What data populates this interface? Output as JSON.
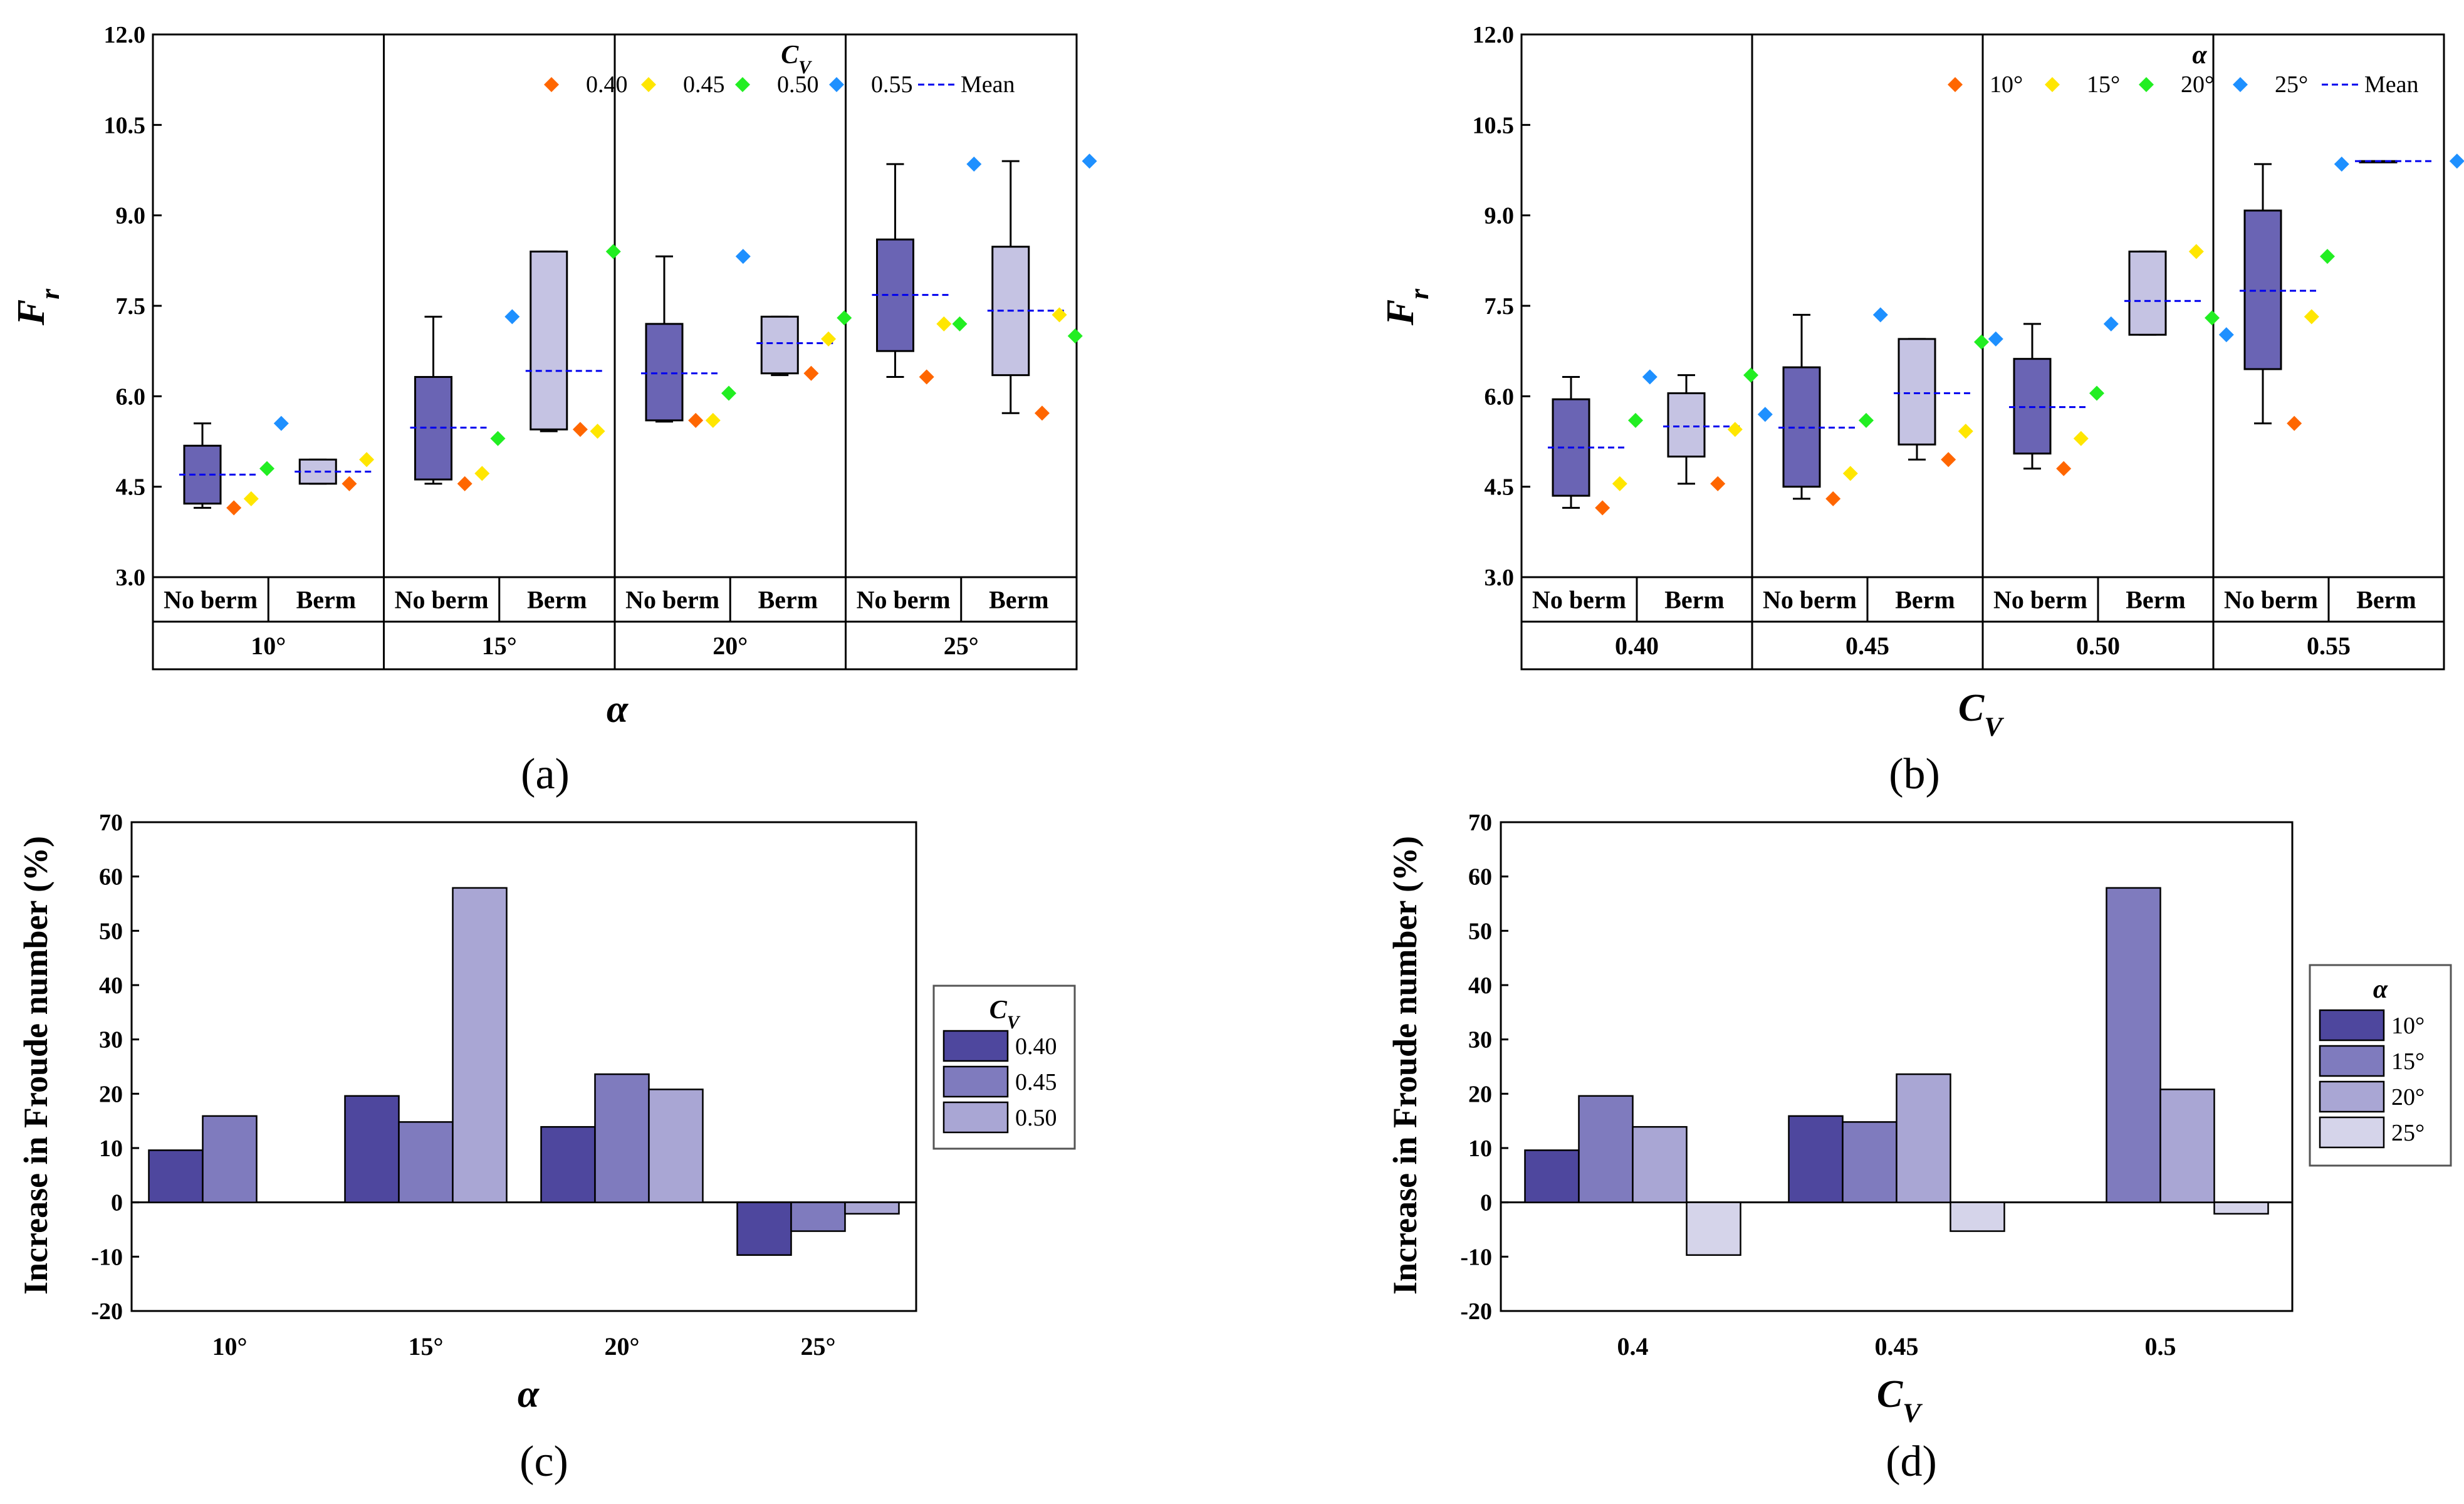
{
  "figure_labels": [
    "(a)",
    "(b)",
    "(c)",
    "(d)"
  ],
  "colors": {
    "cv_0.40": "#FF6600",
    "cv_0.45": "#FFE600",
    "cv_0.50": "#22EE22",
    "cv_0.55": "#1E90FF",
    "box_noberm": "#6A64B4",
    "box_berm": "#C5C3E3",
    "mean_line": "#0000EE",
    "bar_1": "#4E479E",
    "bar_2": "#7F7BBE",
    "bar_3": "#A9A6D4",
    "bar_4": "#D5D4EA"
  },
  "chart_data": [
    {
      "id": "a",
      "type": "box",
      "title": "",
      "ylabel": "Fr",
      "ylabel_main": "F",
      "ylabel_sub": "r",
      "xlabel": "α",
      "ylim": [
        3.0,
        12.0
      ],
      "yticks": [
        "3.0",
        "4.5",
        "6.0",
        "7.5",
        "9.0",
        "10.5",
        "12.0"
      ],
      "ytick_values": [
        3.0,
        4.5,
        6.0,
        7.5,
        9.0,
        10.5,
        12.0
      ],
      "groups": [
        "10°",
        "15°",
        "20°",
        "25°"
      ],
      "subgroups": [
        "No berm",
        "Berm"
      ],
      "legend_title": "CV",
      "legend_title_main": "C",
      "legend_title_sub": "V",
      "legend": [
        "0.40",
        "0.45",
        "0.50",
        "0.55",
        "Mean"
      ],
      "boxes": [
        {
          "group": "10°",
          "sub": "No berm",
          "min": 4.15,
          "q1": 4.22,
          "q3": 5.18,
          "max": 5.55,
          "mean": 4.7,
          "points": [
            4.15,
            4.3,
            4.8,
            5.55
          ]
        },
        {
          "group": "10°",
          "sub": "Berm",
          "min": 4.55,
          "q1": 4.55,
          "q3": 4.95,
          "max": 4.95,
          "mean": 4.75,
          "points": [
            4.55,
            4.95,
            null,
            null
          ]
        },
        {
          "group": "15°",
          "sub": "No berm",
          "min": 4.55,
          "q1": 4.62,
          "q3": 6.32,
          "max": 7.32,
          "mean": 5.48,
          "points": [
            4.55,
            4.72,
            5.3,
            7.32
          ]
        },
        {
          "group": "15°",
          "sub": "Berm",
          "min": 5.42,
          "q1": 5.45,
          "q3": 8.4,
          "max": 8.4,
          "mean": 6.42,
          "points": [
            5.45,
            5.42,
            8.4,
            null
          ]
        },
        {
          "group": "20°",
          "sub": "No berm",
          "min": 5.58,
          "q1": 5.6,
          "q3": 7.2,
          "max": 8.32,
          "mean": 6.38,
          "points": [
            5.6,
            5.6,
            6.05,
            8.32
          ]
        },
        {
          "group": "20°",
          "sub": "Berm",
          "min": 6.35,
          "q1": 6.38,
          "q3": 7.32,
          "max": 7.32,
          "mean": 6.88,
          "points": [
            6.38,
            6.95,
            7.3,
            null
          ]
        },
        {
          "group": "25°",
          "sub": "No berm",
          "min": 6.32,
          "q1": 6.75,
          "q3": 8.6,
          "max": 9.85,
          "mean": 7.68,
          "points": [
            6.32,
            7.2,
            7.2,
            9.85
          ]
        },
        {
          "group": "25°",
          "sub": "Berm",
          "min": 5.72,
          "q1": 6.35,
          "q3": 8.48,
          "max": 9.9,
          "mean": 7.42,
          "points": [
            5.72,
            7.35,
            7.0,
            9.9
          ]
        }
      ]
    },
    {
      "id": "b",
      "type": "box",
      "title": "",
      "ylabel": "Fr",
      "ylabel_main": "F",
      "ylabel_sub": "r",
      "xlabel": "CV",
      "xlabel_main": "C",
      "xlabel_sub": "V",
      "ylim": [
        3.0,
        12.0
      ],
      "yticks": [
        "3.0",
        "4.5",
        "6.0",
        "7.5",
        "9.0",
        "10.5",
        "12.0"
      ],
      "ytick_values": [
        3.0,
        4.5,
        6.0,
        7.5,
        9.0,
        10.5,
        12.0
      ],
      "groups": [
        "0.40",
        "0.45",
        "0.50",
        "0.55"
      ],
      "subgroups": [
        "No berm",
        "Berm"
      ],
      "legend_title": "α",
      "legend": [
        "10°",
        "15°",
        "20°",
        "25°",
        "Mean"
      ],
      "boxes": [
        {
          "group": "0.40",
          "sub": "No berm",
          "min": 4.15,
          "q1": 4.35,
          "q3": 5.95,
          "max": 6.32,
          "mean": 5.15,
          "points": [
            4.15,
            4.55,
            5.6,
            6.32
          ]
        },
        {
          "group": "0.40",
          "sub": "Berm",
          "min": 4.55,
          "q1": 5.0,
          "q3": 6.05,
          "max": 6.35,
          "mean": 5.5,
          "points": [
            4.55,
            5.45,
            6.35,
            5.7
          ]
        },
        {
          "group": "0.45",
          "sub": "No berm",
          "min": 4.3,
          "q1": 4.5,
          "q3": 6.48,
          "max": 7.35,
          "mean": 5.48,
          "points": [
            4.3,
            4.72,
            5.6,
            7.35
          ]
        },
        {
          "group": "0.45",
          "sub": "Berm",
          "min": 4.95,
          "q1": 5.2,
          "q3": 6.95,
          "max": 6.95,
          "mean": 6.05,
          "points": [
            4.95,
            5.42,
            6.9,
            6.95
          ]
        },
        {
          "group": "0.50",
          "sub": "No berm",
          "min": 4.8,
          "q1": 5.05,
          "q3": 6.62,
          "max": 7.2,
          "mean": 5.82,
          "points": [
            4.8,
            5.3,
            6.05,
            7.2
          ]
        },
        {
          "group": "0.50",
          "sub": "Berm",
          "min": 7.02,
          "q1": 7.02,
          "q3": 8.4,
          "max": 8.4,
          "mean": 7.58,
          "points": [
            null,
            8.4,
            7.3,
            7.02
          ]
        },
        {
          "group": "0.55",
          "sub": "No berm",
          "min": 5.55,
          "q1": 6.45,
          "q3": 9.08,
          "max": 9.85,
          "mean": 7.75,
          "points": [
            5.55,
            7.32,
            8.32,
            9.85
          ]
        },
        {
          "group": "0.55",
          "sub": "Berm",
          "min": 9.9,
          "q1": 9.9,
          "q3": 9.9,
          "max": 9.9,
          "mean": 9.9,
          "points": [
            null,
            null,
            null,
            9.9
          ]
        }
      ]
    },
    {
      "id": "c",
      "type": "bar",
      "title": "",
      "ylabel": "Increase in Froude number (%)",
      "xlabel": "α",
      "ylim": [
        -20,
        70
      ],
      "yticks": [
        "-20",
        "-10",
        "0",
        "10",
        "20",
        "30",
        "40",
        "50",
        "60",
        "70"
      ],
      "ytick_values": [
        -20,
        -10,
        0,
        10,
        20,
        30,
        40,
        50,
        60,
        70
      ],
      "categories": [
        "10°",
        "15°",
        "20°",
        "25°"
      ],
      "legend_title": "CV",
      "legend_title_main": "C",
      "legend_title_sub": "V",
      "series": [
        {
          "name": "0.40",
          "values": [
            9.6,
            19.6,
            13.9,
            -9.7
          ]
        },
        {
          "name": "0.45",
          "values": [
            15.9,
            14.8,
            23.6,
            -5.3
          ]
        },
        {
          "name": "0.50",
          "values": [
            null,
            57.9,
            20.8,
            -2.1
          ]
        }
      ]
    },
    {
      "id": "d",
      "type": "bar",
      "title": "",
      "ylabel": "Increase in Froude number (%)",
      "xlabel": "CV",
      "xlabel_main": "C",
      "xlabel_sub": "V",
      "ylim": [
        -20,
        70
      ],
      "yticks": [
        "-20",
        "-10",
        "0",
        "10",
        "20",
        "30",
        "40",
        "50",
        "60",
        "70"
      ],
      "ytick_values": [
        -20,
        -10,
        0,
        10,
        20,
        30,
        40,
        50,
        60,
        70
      ],
      "categories": [
        "0.4",
        "0.45",
        "0.5"
      ],
      "legend_title": "α",
      "series": [
        {
          "name": "10°",
          "values": [
            9.6,
            15.9,
            null
          ]
        },
        {
          "name": "15°",
          "values": [
            19.6,
            14.8,
            57.9
          ]
        },
        {
          "name": "20°",
          "values": [
            13.9,
            23.6,
            20.8
          ]
        },
        {
          "name": "25°",
          "values": [
            -9.7,
            -5.3,
            -2.1
          ]
        }
      ]
    }
  ]
}
